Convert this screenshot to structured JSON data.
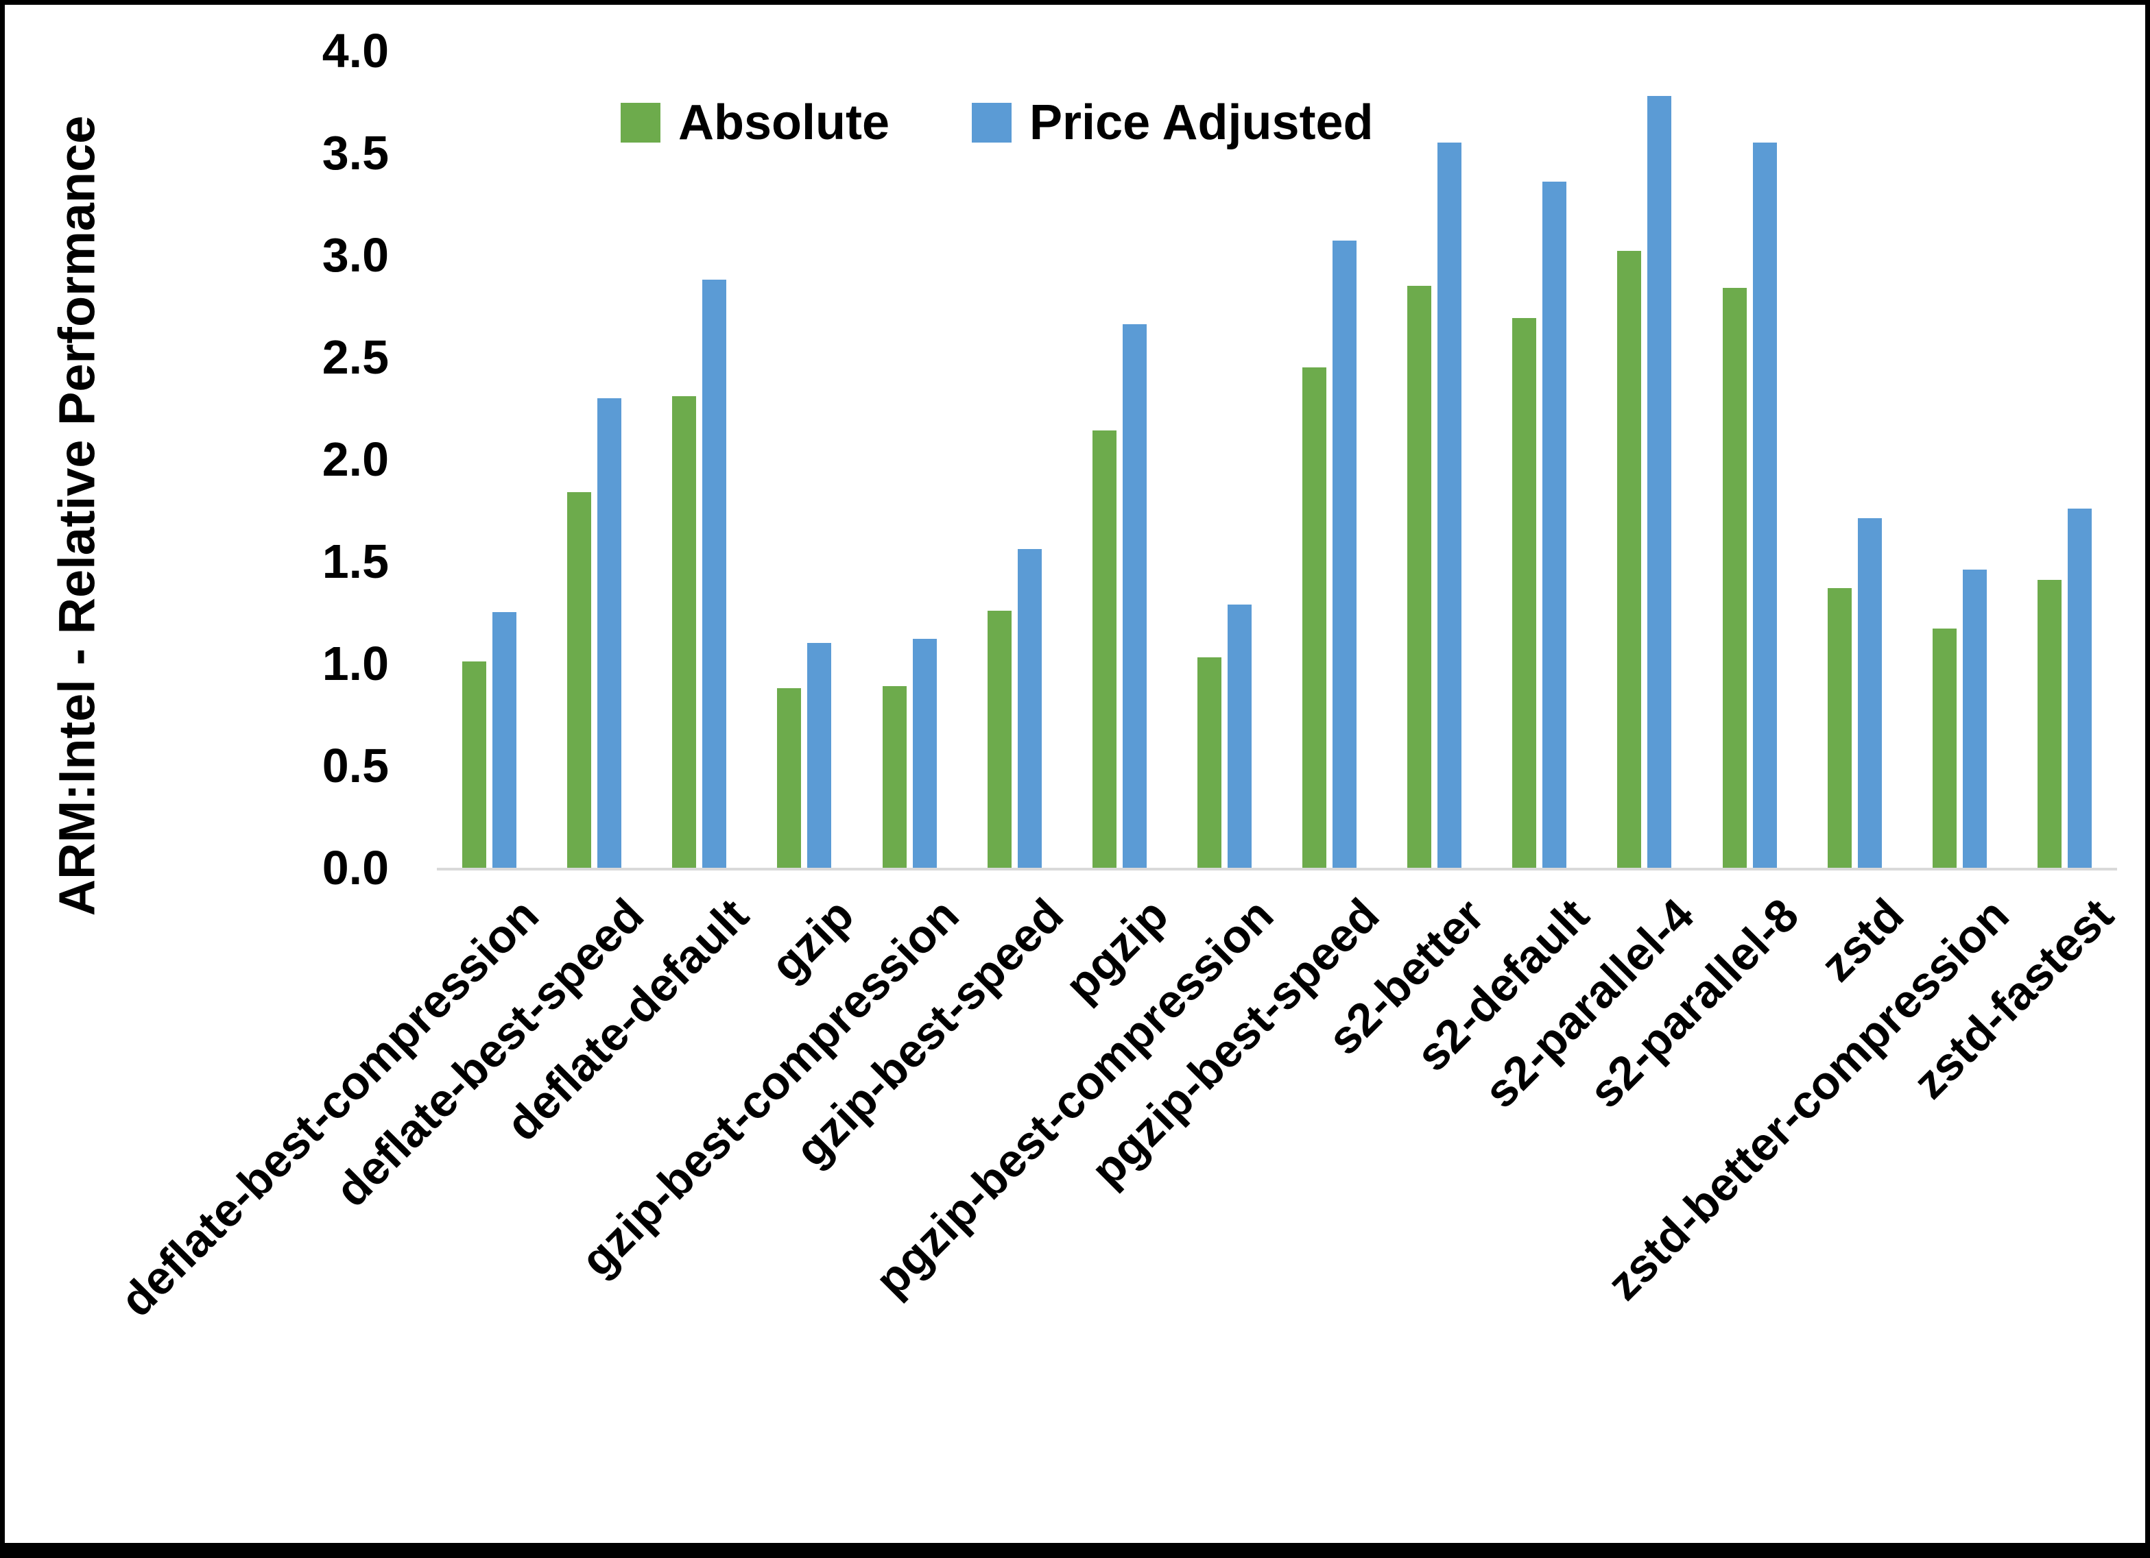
{
  "page_type": "chart-screenshot",
  "background_color": "#FFFFFF",
  "frame_border_color": "#000000",
  "chart_data": {
    "type": "bar",
    "title": "",
    "xlabel": "",
    "ylabel": "ARM:Intel - Relative Performance",
    "ylim": [
      0.0,
      4.0
    ],
    "ytick_step": 0.5,
    "ytick_labels": [
      "0.0",
      "0.5",
      "1.0",
      "1.5",
      "2.0",
      "2.5",
      "3.0",
      "3.5",
      "4.0"
    ],
    "grid": false,
    "axis_line_color": "#D9D9D9",
    "legend_position": "top-center",
    "categories": [
      "deflate-best-compression",
      "deflate-best-speed",
      "deflate-default",
      "gzip",
      "gzip-best-compression",
      "gzip-best-speed",
      "pgzip",
      "pgzip-best-compression",
      "pgzip-best-speed",
      "s2-better",
      "s2-default",
      "s2-parallel-4",
      "s2-parallel-8",
      "zstd",
      "zstd-better-compression",
      "zstd-fastest"
    ],
    "series": [
      {
        "name": "Absolute",
        "color": "#6DAB4C",
        "values": [
          1.01,
          1.84,
          2.31,
          0.88,
          0.89,
          1.26,
          2.14,
          1.03,
          2.45,
          2.85,
          2.69,
          3.02,
          2.84,
          1.37,
          1.17,
          1.41
        ]
      },
      {
        "name": "Price Adjusted",
        "color": "#5B9BD5",
        "values": [
          1.25,
          2.3,
          2.88,
          1.1,
          1.12,
          1.56,
          2.66,
          1.29,
          3.07,
          3.55,
          3.36,
          3.78,
          3.55,
          1.71,
          1.46,
          1.76
        ]
      }
    ]
  }
}
